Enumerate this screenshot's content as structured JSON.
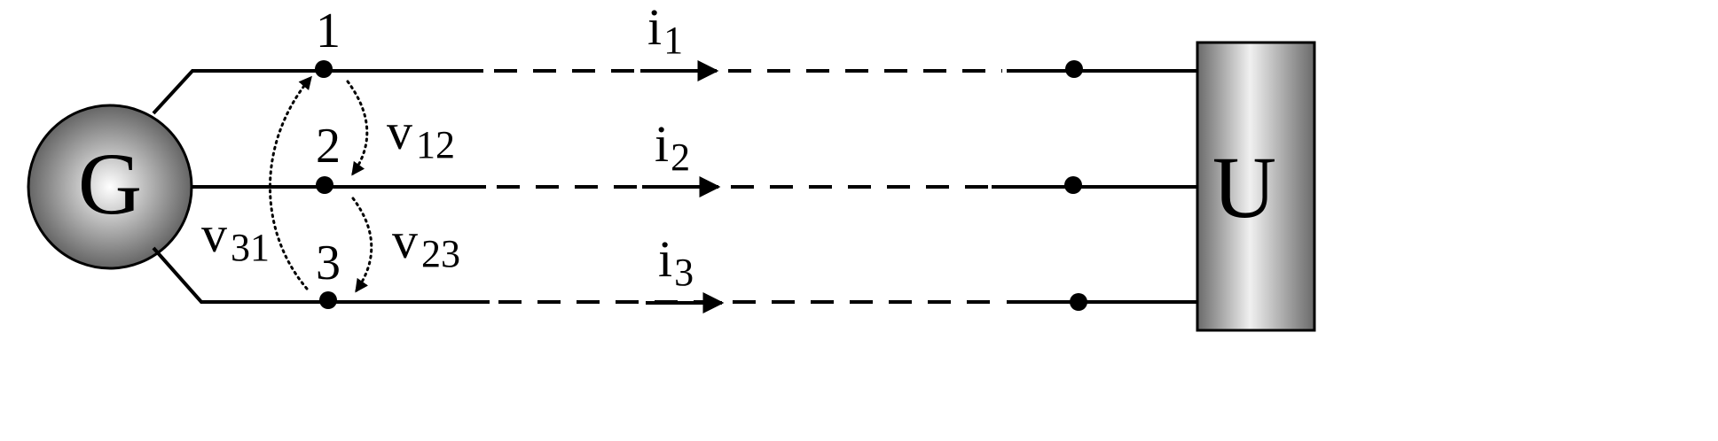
{
  "generator": {
    "label": "G"
  },
  "load": {
    "label": "U"
  },
  "nodes": [
    {
      "label": "1"
    },
    {
      "label": "2"
    },
    {
      "label": "3"
    }
  ],
  "currents": [
    {
      "symbol": "i",
      "sub": "1"
    },
    {
      "symbol": "i",
      "sub": "2"
    },
    {
      "symbol": "i",
      "sub": "3"
    }
  ],
  "voltages": [
    {
      "symbol": "v",
      "sub": "12"
    },
    {
      "symbol": "v",
      "sub": "23"
    },
    {
      "symbol": "v",
      "sub": "31"
    }
  ],
  "colors": {
    "line": "#000000",
    "generator_gradient": [
      "#ffffff",
      "#555555"
    ],
    "load_gradient": [
      "#6a6a6a",
      "#f0f0f0",
      "#6a6a6a"
    ]
  }
}
